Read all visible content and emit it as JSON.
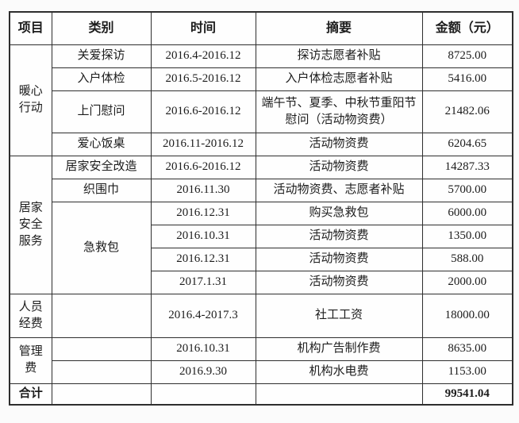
{
  "table": {
    "headers": [
      "项目",
      "类别",
      "时间",
      "摘要",
      "金额（元）"
    ],
    "projects": [
      "暖心\n行动",
      "居家\n安全\n服务",
      "人员\n经费",
      "管理\n费"
    ],
    "rows": [
      {
        "category": "关爱探访",
        "time": "2016.4-2016.12",
        "summary": "探访志愿者补贴",
        "amount": "8725.00"
      },
      {
        "category": "入户体检",
        "time": "2016.5-2016.12",
        "summary": "入户体检志愿者补贴",
        "amount": "5416.00"
      },
      {
        "category": "上门慰问",
        "time": "2016.6-2016.12",
        "summary": "端午节、夏季、中秋节重阳节慰问（活动物资费）",
        "amount": "21482.06"
      },
      {
        "category": "爱心饭桌",
        "time": "2016.11-2016.12",
        "summary": "活动物资费",
        "amount": "6204.65"
      },
      {
        "category": "居家安全改造",
        "time": "2016.6-2016.12",
        "summary": "活动物资费",
        "amount": "14287.33"
      },
      {
        "category": "织围巾",
        "time": "2016.11.30",
        "summary": "活动物资费、志愿者补贴",
        "amount": "5700.00"
      },
      {
        "category": "急救包",
        "time": "2016.12.31",
        "summary": "购买急救包",
        "amount": "6000.00"
      },
      {
        "category": "",
        "time": "2016.10.31",
        "summary": "活动物资费",
        "amount": "1350.00"
      },
      {
        "category": "",
        "time": "2016.12.31",
        "summary": "活动物资费",
        "amount": "588.00"
      },
      {
        "category": "",
        "time": "2017.1.31",
        "summary": "活动物资费",
        "amount": "2000.00"
      },
      {
        "category": "",
        "time": "2016.4-2017.3",
        "summary": "社工工资",
        "amount": "18000.00"
      },
      {
        "category": "",
        "time": "2016.10.31",
        "summary": "机构广告制作费",
        "amount": "8635.00"
      },
      {
        "category": "",
        "time": "2016.9.30",
        "summary": "机构水电费",
        "amount": "1153.00"
      }
    ],
    "total": {
      "label": "合计",
      "amount": "99541.04"
    }
  },
  "chart_data": {
    "type": "table",
    "columns": [
      "项目",
      "类别",
      "时间",
      "摘要",
      "金额（元）"
    ],
    "rows": [
      [
        "暖心行动",
        "关爱探访",
        "2016.4-2016.12",
        "探访志愿者补贴",
        "8725.00"
      ],
      [
        "暖心行动",
        "入户体检",
        "2016.5-2016.12",
        "入户体检志愿者补贴",
        "5416.00"
      ],
      [
        "暖心行动",
        "上门慰问",
        "2016.6-2016.12",
        "端午节、夏季、中秋节重阳节慰问（活动物资费）",
        "21482.06"
      ],
      [
        "暖心行动",
        "爱心饭桌",
        "2016.11-2016.12",
        "活动物资费",
        "6204.65"
      ],
      [
        "居家安全服务",
        "居家安全改造",
        "2016.6-2016.12",
        "活动物资费",
        "14287.33"
      ],
      [
        "居家安全服务",
        "织围巾",
        "2016.11.30",
        "活动物资费、志愿者补贴",
        "5700.00"
      ],
      [
        "居家安全服务",
        "急救包",
        "2016.12.31",
        "购买急救包",
        "6000.00"
      ],
      [
        "居家安全服务",
        "急救包",
        "2016.10.31",
        "活动物资费",
        "1350.00"
      ],
      [
        "居家安全服务",
        "急救包",
        "2016.12.31",
        "活动物资费",
        "588.00"
      ],
      [
        "居家安全服务",
        "急救包",
        "2017.1.31",
        "活动物资费",
        "2000.00"
      ],
      [
        "人员经费",
        "",
        "2016.4-2017.3",
        "社工工资",
        "18000.00"
      ],
      [
        "管理费",
        "",
        "2016.10.31",
        "机构广告制作费",
        "8635.00"
      ],
      [
        "管理费",
        "",
        "2016.9.30",
        "机构水电费",
        "1153.00"
      ],
      [
        "合计",
        "",
        "",
        "",
        "99541.04"
      ]
    ]
  }
}
